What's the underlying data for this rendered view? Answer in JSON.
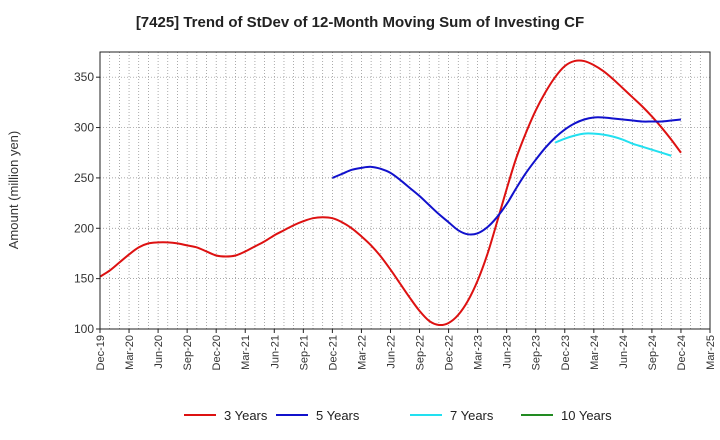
{
  "chart_data": {
    "type": "line",
    "title": "[7425]  Trend of StDev of 12-Month Moving Sum of Investing CF",
    "xlabel": "",
    "ylabel": "Amount (million yen)",
    "ylim": [
      100,
      375
    ],
    "yticks": [
      100,
      150,
      200,
      250,
      300,
      350
    ],
    "grid": true,
    "legend_position": "bottom",
    "x_tick_labels": [
      "Dec-19",
      "Mar-20",
      "Jun-20",
      "Sep-20",
      "Dec-20",
      "Mar-21",
      "Jun-21",
      "Sep-21",
      "Dec-21",
      "Mar-22",
      "Jun-22",
      "Sep-22",
      "Dec-22",
      "Mar-23",
      "Jun-23",
      "Sep-23",
      "Dec-23",
      "Mar-24",
      "Jun-24",
      "Sep-24",
      "Dec-24",
      "Mar-25"
    ],
    "x_months": [
      "2019-12",
      "2020-01",
      "2020-02",
      "2020-03",
      "2020-04",
      "2020-05",
      "2020-06",
      "2020-07",
      "2020-08",
      "2020-09",
      "2020-10",
      "2020-11",
      "2020-12",
      "2021-01",
      "2021-02",
      "2021-03",
      "2021-04",
      "2021-05",
      "2021-06",
      "2021-07",
      "2021-08",
      "2021-09",
      "2021-10",
      "2021-11",
      "2021-12",
      "2022-01",
      "2022-02",
      "2022-03",
      "2022-04",
      "2022-05",
      "2022-06",
      "2022-07",
      "2022-08",
      "2022-09",
      "2022-10",
      "2022-11",
      "2022-12",
      "2023-01",
      "2023-02",
      "2023-03",
      "2023-04",
      "2023-05",
      "2023-06",
      "2023-07",
      "2023-08",
      "2023-09",
      "2023-10",
      "2023-11",
      "2023-12",
      "2024-01",
      "2024-02",
      "2024-03",
      "2024-04",
      "2024-05",
      "2024-06",
      "2024-07",
      "2024-08",
      "2024-09",
      "2024-10",
      "2024-11",
      "2024-12",
      "2025-01",
      "2025-02",
      "2025-03"
    ],
    "series": [
      {
        "name": "3 Years",
        "color": "#dd1111",
        "start_month": "2019-12",
        "values": [
          152,
          158,
          166,
          174,
          181,
          185,
          186,
          186,
          185,
          183,
          181,
          177,
          173,
          172,
          173,
          177,
          182,
          187,
          193,
          198,
          203,
          207,
          210,
          211,
          210,
          206,
          200,
          192,
          183,
          172,
          159,
          145,
          131,
          118,
          108,
          104,
          106,
          114,
          128,
          148,
          174,
          206,
          239,
          270,
          295,
          317,
          335,
          350,
          361,
          366,
          366,
          362,
          356,
          348,
          339,
          330,
          321,
          311,
          300,
          288,
          275
        ]
      },
      {
        "name": "5 Years",
        "color": "#1111cc",
        "start_month": "2021-12",
        "values": [
          250,
          254,
          258,
          260,
          261,
          259,
          255,
          248,
          240,
          232,
          223,
          214,
          206,
          198,
          194,
          195,
          201,
          211,
          224,
          240,
          255,
          268,
          280,
          290,
          298,
          304,
          308,
          310,
          310,
          309,
          308,
          307,
          306,
          306,
          306,
          307,
          308
        ]
      },
      {
        "name": "7 Years",
        "color": "#22e0f0",
        "start_month": "2023-11",
        "values": [
          285,
          289,
          292,
          294,
          294,
          293,
          291,
          288,
          284,
          281,
          278,
          275,
          272
        ]
      },
      {
        "name": "10 Years",
        "color": "#228b22",
        "start_month": "2024-12",
        "values": []
      }
    ]
  }
}
